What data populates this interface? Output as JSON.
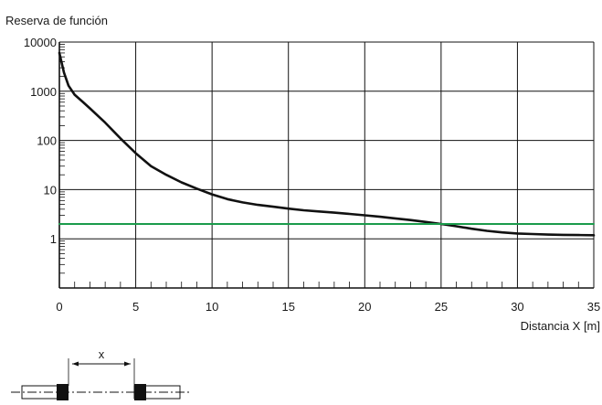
{
  "chart_data": {
    "type": "line",
    "ylabel": "Reserva de función",
    "xlabel": "Distancia X [m]",
    "xlim": [
      0,
      35
    ],
    "ylim": [
      0.1,
      10000
    ],
    "y_scale": "log",
    "grid": true,
    "x_ticks": [
      "0",
      "5",
      "10",
      "15",
      "20",
      "25",
      "30",
      "35"
    ],
    "y_ticks": [
      "10000",
      "1000",
      "100",
      "10",
      "1"
    ],
    "series": [
      {
        "color": "#111111",
        "x": [
          0,
          0.3,
          0.6,
          1,
          1.5,
          2,
          3,
          4,
          5,
          6,
          7,
          8,
          9,
          10,
          11,
          12,
          13,
          14,
          15,
          16,
          17,
          18,
          19,
          20,
          21,
          22,
          23,
          24,
          25,
          26,
          27,
          28,
          29,
          30,
          31,
          32,
          33,
          34,
          35
        ],
        "y": [
          6000,
          2400,
          1300,
          850,
          620,
          450,
          230,
          110,
          55,
          30,
          20,
          14,
          10.5,
          8,
          6.4,
          5.5,
          4.9,
          4.5,
          4.1,
          3.8,
          3.6,
          3.4,
          3.2,
          3.0,
          2.8,
          2.6,
          2.4,
          2.2,
          2.0,
          1.8,
          1.6,
          1.45,
          1.35,
          1.28,
          1.25,
          1.22,
          1.2,
          1.19,
          1.18
        ]
      },
      {
        "color": "#1a9b4b",
        "x": [
          0,
          35
        ],
        "y": [
          2,
          2
        ]
      }
    ],
    "inset_label": "x"
  }
}
